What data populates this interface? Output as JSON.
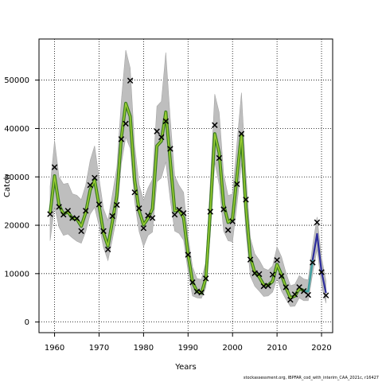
{
  "chart_data": {
    "type": "line",
    "xlabel": "Years",
    "ylabel": "Catch",
    "xlim": [
      1956.5,
      2022.5
    ],
    "ylim": [
      -2200,
      58500
    ],
    "xticks": [
      1960,
      1970,
      1980,
      1990,
      2000,
      2010,
      2020
    ],
    "yticks": [
      0,
      10000,
      20000,
      30000,
      40000,
      50000
    ],
    "grid": true,
    "grid_style": "dotted",
    "colors": {
      "band": "#bebebe",
      "band_edge": "#a6a6a6",
      "fit_main": "#3a7d1e",
      "fit_overlay": "#9acd32",
      "fit_interim_early": "#40a0a0",
      "fit_interim_late": "#2c2c9c",
      "observed_marker": "#000000"
    },
    "fitted": {
      "x": [
        1959,
        1960,
        1961,
        1962,
        1963,
        1964,
        1965,
        1966,
        1967,
        1968,
        1969,
        1970,
        1971,
        1972,
        1973,
        1974,
        1975,
        1976,
        1977,
        1978,
        1979,
        1980,
        1981,
        1982,
        1983,
        1984,
        1985,
        1986,
        1987,
        1988,
        1989,
        1990,
        1991,
        1992,
        1993,
        1994,
        1995,
        1996,
        1997,
        1998,
        1999,
        2000,
        2001,
        2002,
        2003,
        2004,
        2005,
        2006,
        2007,
        2008,
        2009,
        2010,
        2011,
        2012,
        2013,
        2014,
        2015,
        2016,
        2017,
        2018,
        2019,
        2020,
        2021
      ],
      "y": [
        22500,
        30200,
        24200,
        22300,
        22800,
        21400,
        21300,
        19800,
        22600,
        27300,
        29300,
        24100,
        18400,
        15700,
        20800,
        26100,
        38000,
        45200,
        42500,
        29300,
        23000,
        20100,
        21400,
        23400,
        36400,
        37400,
        43400,
        33300,
        23000,
        23100,
        21500,
        14000,
        8300,
        6300,
        6000,
        9000,
        22900,
        38900,
        35000,
        24300,
        20600,
        21400,
        30200,
        38800,
        23600,
        13400,
        10200,
        9300,
        7700,
        7600,
        8400,
        11900,
        9800,
        7100,
        5000,
        5400,
        6900,
        6500,
        6300,
        12800,
        18200,
        10400,
        6000
      ]
    },
    "observed": {
      "x": [
        1959,
        1960,
        1961,
        1962,
        1963,
        1964,
        1965,
        1966,
        1967,
        1968,
        1969,
        1970,
        1971,
        1972,
        1973,
        1974,
        1975,
        1976,
        1977,
        1978,
        1979,
        1980,
        1981,
        1982,
        1983,
        1984,
        1985,
        1986,
        1987,
        1988,
        1989,
        1990,
        1991,
        1992,
        1993,
        1994,
        1995,
        1996,
        1997,
        1998,
        1999,
        2000,
        2001,
        2002,
        2003,
        2004,
        2005,
        2006,
        2007,
        2008,
        2009,
        2010,
        2011,
        2012,
        2013,
        2014,
        2015,
        2016,
        2017,
        2018,
        2019,
        2020,
        2021
      ],
      "y": [
        22300,
        32000,
        23800,
        22200,
        23000,
        21500,
        21400,
        18800,
        23000,
        28300,
        29800,
        24300,
        18800,
        15000,
        21900,
        24200,
        37800,
        41000,
        49900,
        26800,
        23500,
        19400,
        22000,
        21500,
        39400,
        38200,
        41500,
        35800,
        22200,
        23200,
        22500,
        13900,
        8200,
        6300,
        6100,
        9000,
        22800,
        40700,
        33900,
        23300,
        19000,
        20800,
        28500,
        38900,
        25300,
        12900,
        10100,
        9900,
        7400,
        7500,
        9800,
        12800,
        9500,
        7200,
        4600,
        5700,
        7200,
        6400,
        5600,
        12300,
        20600,
        10300,
        5500
      ]
    },
    "band_upper": {
      "x": [
        1959,
        1960,
        1961,
        1962,
        1963,
        1964,
        1965,
        1966,
        1967,
        1968,
        1969,
        1970,
        1971,
        1972,
        1973,
        1974,
        1975,
        1976,
        1977,
        1978,
        1979,
        1980,
        1981,
        1982,
        1983,
        1984,
        1985,
        1986,
        1987,
        1988,
        1989,
        1990,
        1991,
        1992,
        1993,
        1994,
        1995,
        1996,
        1997,
        1998,
        1999,
        2000,
        2001,
        2002,
        2003,
        2004,
        2005,
        2006,
        2007,
        2008,
        2009,
        2010,
        2011,
        2012,
        2013,
        2014,
        2015,
        2016,
        2017,
        2018,
        2019,
        2020,
        2021
      ],
      "y": [
        28000,
        37500,
        30000,
        28500,
        28700,
        26500,
        26200,
        25300,
        28300,
        33400,
        36400,
        29700,
        23400,
        21000,
        26400,
        32000,
        45700,
        56200,
        52500,
        36500,
        28400,
        25200,
        27700,
        29500,
        44600,
        45600,
        55700,
        42000,
        30200,
        28200,
        26800,
        17700,
        11400,
        9000,
        8800,
        12300,
        28800,
        47100,
        43300,
        30600,
        26100,
        26500,
        37000,
        47400,
        30800,
        17400,
        14100,
        12800,
        11100,
        10700,
        11600,
        15500,
        13500,
        10200,
        7500,
        7800,
        9600,
        8900,
        8700,
        15800,
        21700,
        13400,
        8500
      ]
    },
    "band_lower": {
      "x": [
        1959,
        1960,
        1961,
        1962,
        1963,
        1964,
        1965,
        1966,
        1967,
        1968,
        1969,
        1970,
        1971,
        1972,
        1973,
        1974,
        1975,
        1976,
        1977,
        1978,
        1979,
        1980,
        1981,
        1982,
        1983,
        1984,
        1985,
        1986,
        1987,
        1988,
        1989,
        1990,
        1991,
        1992,
        1993,
        1994,
        1995,
        1996,
        1997,
        1998,
        1999,
        2000,
        2001,
        2002,
        2003,
        2004,
        2005,
        2006,
        2007,
        2008,
        2009,
        2010,
        2011,
        2012,
        2013,
        2014,
        2015,
        2016,
        2017,
        2018,
        2019,
        2020,
        2021
      ],
      "y": [
        16800,
        23800,
        19600,
        17900,
        18200,
        17400,
        16700,
        16300,
        18700,
        22300,
        23700,
        19900,
        15400,
        12700,
        17100,
        21900,
        32700,
        38200,
        35900,
        24900,
        18700,
        15600,
        17900,
        18600,
        29000,
        29800,
        33100,
        25300,
        18800,
        18300,
        16900,
        10500,
        5400,
        5000,
        4900,
        7100,
        18000,
        33100,
        28300,
        18800,
        16800,
        16600,
        24300,
        32800,
        18600,
        9500,
        7400,
        6400,
        5300,
        5400,
        6200,
        9000,
        6400,
        4700,
        3200,
        3300,
        5000,
        4400,
        4400,
        10000,
        15000,
        7600,
        3900
      ]
    },
    "segments": [
      {
        "from": 1959,
        "to": 2016,
        "style": "main"
      },
      {
        "from": 2016,
        "to": 2018,
        "style": "interim_early"
      },
      {
        "from": 2018,
        "to": 2021,
        "style": "interim_late"
      }
    ]
  },
  "footer": {
    "credit": "stockassessment.org, IBPFAR_cod_with_interim_CAA_2021c, r16427"
  }
}
